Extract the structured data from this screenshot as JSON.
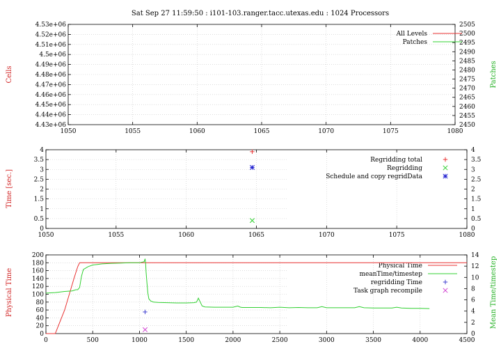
{
  "title": "Sat Sep 27 11:59:50 : i101-103.ranger.tacc.utexas.edu : 1024 Processors",
  "chart_data": [
    {
      "type": "line",
      "ylabel": "Cells",
      "y2label": "Patches",
      "xlim": [
        1050,
        1080
      ],
      "xticks": [
        "1050",
        "1055",
        "1060",
        "1065",
        "1070",
        "1075",
        "1080"
      ],
      "ylim": [
        4430000,
        4530000
      ],
      "yticks": [
        "4.43e+06",
        "4.44e+06",
        "4.45e+06",
        "4.46e+06",
        "4.47e+06",
        "4.48e+06",
        "4.49e+06",
        "4.5e+06",
        "4.51e+06",
        "4.52e+06",
        "4.53e+06"
      ],
      "y2lim": [
        2450,
        2505
      ],
      "y2ticks": [
        "2450",
        "2455",
        "2460",
        "2465",
        "2470",
        "2475",
        "2480",
        "2485",
        "2490",
        "2495",
        "2500",
        "2505"
      ],
      "grid": true,
      "legend": "top-right",
      "series": [
        {
          "name": "All Levels",
          "color": "#e83030",
          "x": [],
          "y": []
        },
        {
          "name": "Patches",
          "color": "#30d030",
          "x": [],
          "y": []
        }
      ]
    },
    {
      "type": "scatter",
      "ylabel": "Time [sec.]",
      "xlim": [
        1050,
        1080
      ],
      "xticks": [
        "1050",
        "1055",
        "1060",
        "1065",
        "1070",
        "1075",
        "1080"
      ],
      "ylim": [
        0,
        4
      ],
      "yticks": [
        "0",
        "0.5",
        "1",
        "1.5",
        "2",
        "2.5",
        "3",
        "3.5",
        "4"
      ],
      "y2ticks": [
        "0",
        "0.5",
        "1",
        "1.5",
        "2",
        "2.5",
        "3",
        "3.5",
        "4"
      ],
      "grid": true,
      "legend": "top-right",
      "series": [
        {
          "name": "Regridding total",
          "color": "#e83030",
          "marker": "+",
          "x": [
            1064.7
          ],
          "y": [
            3.9
          ]
        },
        {
          "name": "Regridding",
          "color": "#30d030",
          "marker": "x",
          "x": [
            1064.7
          ],
          "y": [
            0.4
          ]
        },
        {
          "name": "Schedule and copy regridData",
          "color": "#2020d0",
          "marker": "*",
          "x": [
            1064.7
          ],
          "y": [
            3.1
          ]
        }
      ]
    },
    {
      "type": "line",
      "ylabel": "Physical Time",
      "y2label": "Mean Time/timestep",
      "xlim": [
        0,
        4500
      ],
      "xticks": [
        "0",
        "500",
        "1000",
        "1500",
        "2000",
        "2500",
        "3000",
        "3500",
        "4000",
        "4500"
      ],
      "ylim": [
        0,
        200
      ],
      "yticks": [
        "0",
        "20",
        "40",
        "60",
        "80",
        "100",
        "120",
        "140",
        "160",
        "180",
        "200"
      ],
      "y2lim": [
        0,
        14
      ],
      "y2ticks": [
        "0",
        "2",
        "4",
        "6",
        "8",
        "10",
        "12",
        "14"
      ],
      "grid": true,
      "legend": "top-right",
      "series": [
        {
          "name": "Physical Time",
          "color": "#e83030",
          "axis": "left",
          "x": [
            0,
            100,
            200,
            300,
            340,
            360,
            4500
          ],
          "y": [
            0,
            0,
            60,
            140,
            170,
            180,
            180
          ]
        },
        {
          "name": "meanTime/timestep",
          "color": "#30d030",
          "axis": "right",
          "x": [
            0,
            100,
            200,
            280,
            320,
            340,
            360,
            380,
            400,
            450,
            500,
            550,
            600,
            700,
            800,
            900,
            1000,
            1050,
            1060,
            1065,
            1070,
            1080,
            1090,
            1100,
            1120,
            1150,
            1200,
            1300,
            1400,
            1500,
            1580,
            1610,
            1630,
            1650,
            1670,
            1700,
            1800,
            1900,
            2000,
            2050,
            2080,
            2100,
            2200,
            2300,
            2400,
            2500,
            2600,
            2700,
            2800,
            2900,
            2950,
            3000,
            3100,
            3200,
            3300,
            3350,
            3400,
            3500,
            3600,
            3700,
            3750,
            3800,
            3900,
            4000,
            4100
          ],
          "y": [
            7.2,
            7.3,
            7.5,
            7.6,
            7.8,
            7.8,
            8.2,
            10.2,
            11.4,
            11.9,
            12.2,
            12.3,
            12.4,
            12.5,
            12.55,
            12.6,
            12.6,
            12.8,
            13.3,
            12.6,
            11.0,
            9.0,
            7.2,
            6.2,
            5.8,
            5.6,
            5.55,
            5.5,
            5.45,
            5.45,
            5.5,
            5.6,
            6.3,
            5.6,
            4.9,
            4.75,
            4.7,
            4.7,
            4.7,
            4.9,
            4.7,
            4.65,
            4.65,
            4.65,
            4.6,
            4.7,
            4.6,
            4.65,
            4.6,
            4.6,
            4.8,
            4.6,
            4.6,
            4.6,
            4.6,
            4.8,
            4.6,
            4.55,
            4.55,
            4.55,
            4.7,
            4.55,
            4.5,
            4.5,
            4.45
          ]
        },
        {
          "name": "regridding Time",
          "color": "#4040d0",
          "marker": "+",
          "axis": "left",
          "x": [
            1060
          ],
          "y": [
            55
          ]
        },
        {
          "name": "Task graph recompile",
          "color": "#d040d0",
          "marker": "x",
          "axis": "left",
          "x": [
            1060
          ],
          "y": [
            10
          ]
        }
      ]
    }
  ]
}
